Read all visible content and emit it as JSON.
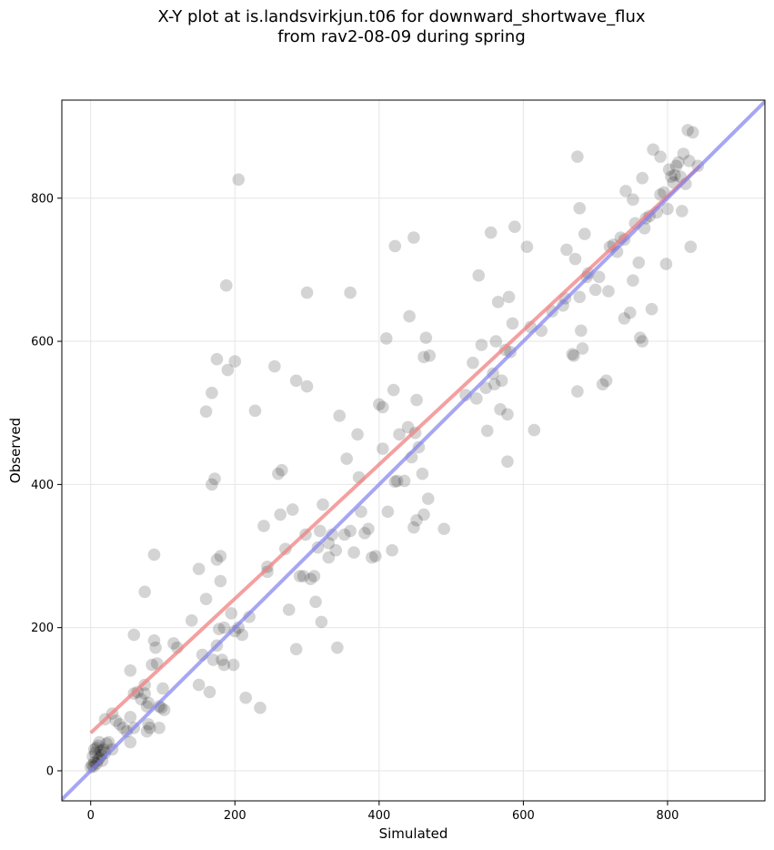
{
  "chart_data": {
    "type": "scatter",
    "title_line1": "X-Y plot at is.landsvirkjun.t06 for downward_shortwave_flux",
    "title_line2": "from rav2-08-09 during spring",
    "xlabel": "Simulated",
    "ylabel": "Observed",
    "xlim": [
      -40,
      935
    ],
    "ylim": [
      -42,
      937
    ],
    "xticks": [
      0,
      200,
      400,
      600,
      800
    ],
    "yticks": [
      0,
      200,
      400,
      600,
      800
    ],
    "grid": true,
    "colors": {
      "points": "#000000",
      "fit_line": "#f08080",
      "one_to_one": "#8080f0"
    },
    "fit_line": {
      "x": [
        0,
        845
      ],
      "y": [
        53,
        845
      ]
    },
    "one_to_one": {
      "x": [
        -40,
        935
      ],
      "y": [
        -40,
        935
      ]
    },
    "points": [
      [
        0,
        5
      ],
      [
        2,
        8
      ],
      [
        4,
        6
      ],
      [
        5,
        12
      ],
      [
        8,
        10
      ],
      [
        10,
        15
      ],
      [
        3,
        20
      ],
      [
        6,
        25
      ],
      [
        12,
        18
      ],
      [
        15,
        22
      ],
      [
        18,
        30
      ],
      [
        8,
        32
      ],
      [
        10,
        35
      ],
      [
        14,
        28
      ],
      [
        20,
        25
      ],
      [
        22,
        38
      ],
      [
        25,
        40
      ],
      [
        5,
        30
      ],
      [
        12,
        40
      ],
      [
        16,
        14
      ],
      [
        30,
        30
      ],
      [
        30,
        80
      ],
      [
        35,
        70
      ],
      [
        40,
        65
      ],
      [
        45,
        60
      ],
      [
        50,
        55
      ],
      [
        55,
        40
      ],
      [
        55,
        75
      ],
      [
        60,
        60
      ],
      [
        65,
        110
      ],
      [
        70,
        100
      ],
      [
        75,
        120
      ],
      [
        75,
        108
      ],
      [
        78,
        90
      ],
      [
        80,
        95
      ],
      [
        80,
        65
      ],
      [
        78,
        55
      ],
      [
        82,
        60
      ],
      [
        85,
        148
      ],
      [
        88,
        182
      ],
      [
        90,
        172
      ],
      [
        92,
        150
      ],
      [
        95,
        90
      ],
      [
        95,
        60
      ],
      [
        98,
        88
      ],
      [
        100,
        115
      ],
      [
        102,
        85
      ],
      [
        20,
        72
      ],
      [
        55,
        140
      ],
      [
        60,
        190
      ],
      [
        75,
        250
      ],
      [
        88,
        302
      ],
      [
        60,
        108
      ],
      [
        115,
        178
      ],
      [
        120,
        172
      ],
      [
        140,
        210
      ],
      [
        150,
        120
      ],
      [
        155,
        162
      ],
      [
        160,
        240
      ],
      [
        150,
        282
      ],
      [
        165,
        110
      ],
      [
        170,
        155
      ],
      [
        175,
        175
      ],
      [
        175,
        295
      ],
      [
        180,
        300
      ],
      [
        180,
        265
      ],
      [
        178,
        198
      ],
      [
        182,
        155
      ],
      [
        185,
        148
      ],
      [
        185,
        200
      ],
      [
        195,
        220
      ],
      [
        198,
        148
      ],
      [
        200,
        195
      ],
      [
        205,
        200
      ],
      [
        210,
        190
      ],
      [
        215,
        102
      ],
      [
        220,
        215
      ],
      [
        235,
        88
      ],
      [
        160,
        502
      ],
      [
        168,
        528
      ],
      [
        172,
        408
      ],
      [
        168,
        400
      ],
      [
        175,
        575
      ],
      [
        190,
        560
      ],
      [
        188,
        678
      ],
      [
        200,
        572
      ],
      [
        205,
        826
      ],
      [
        228,
        503
      ],
      [
        240,
        342
      ],
      [
        245,
        285
      ],
      [
        245,
        278
      ],
      [
        255,
        565
      ],
      [
        260,
        415
      ],
      [
        263,
        358
      ],
      [
        265,
        420
      ],
      [
        270,
        310
      ],
      [
        275,
        225
      ],
      [
        280,
        365
      ],
      [
        285,
        545
      ],
      [
        285,
        170
      ],
      [
        290,
        272
      ],
      [
        295,
        272
      ],
      [
        298,
        330
      ],
      [
        300,
        668
      ],
      [
        300,
        537
      ],
      [
        305,
        268
      ],
      [
        310,
        272
      ],
      [
        312,
        236
      ],
      [
        315,
        312
      ],
      [
        318,
        335
      ],
      [
        320,
        208
      ],
      [
        322,
        372
      ],
      [
        330,
        318
      ],
      [
        330,
        298
      ],
      [
        335,
        330
      ],
      [
        340,
        308
      ],
      [
        342,
        172
      ],
      [
        345,
        496
      ],
      [
        352,
        330
      ],
      [
        355,
        436
      ],
      [
        360,
        668
      ],
      [
        360,
        335
      ],
      [
        365,
        305
      ],
      [
        370,
        470
      ],
      [
        372,
        410
      ],
      [
        375,
        362
      ],
      [
        380,
        332
      ],
      [
        385,
        338
      ],
      [
        390,
        298
      ],
      [
        395,
        300
      ],
      [
        400,
        512
      ],
      [
        405,
        508
      ],
      [
        405,
        450
      ],
      [
        410,
        604
      ],
      [
        412,
        362
      ],
      [
        418,
        308
      ],
      [
        420,
        532
      ],
      [
        422,
        733
      ],
      [
        422,
        404
      ],
      [
        425,
        405
      ],
      [
        428,
        470
      ],
      [
        435,
        405
      ],
      [
        440,
        480
      ],
      [
        442,
        635
      ],
      [
        445,
        438
      ],
      [
        448,
        745
      ],
      [
        448,
        340
      ],
      [
        450,
        472
      ],
      [
        452,
        518
      ],
      [
        452,
        350
      ],
      [
        455,
        452
      ],
      [
        460,
        415
      ],
      [
        462,
        578
      ],
      [
        462,
        358
      ],
      [
        465,
        605
      ],
      [
        468,
        380
      ],
      [
        470,
        580
      ],
      [
        490,
        338
      ],
      [
        520,
        525
      ],
      [
        530,
        570
      ],
      [
        535,
        520
      ],
      [
        538,
        692
      ],
      [
        542,
        595
      ],
      [
        548,
        535
      ],
      [
        550,
        475
      ],
      [
        555,
        752
      ],
      [
        558,
        555
      ],
      [
        560,
        540
      ],
      [
        562,
        600
      ],
      [
        565,
        655
      ],
      [
        568,
        505
      ],
      [
        570,
        545
      ],
      [
        575,
        588
      ],
      [
        578,
        498
      ],
      [
        578,
        432
      ],
      [
        580,
        662
      ],
      [
        582,
        585
      ],
      [
        585,
        625
      ],
      [
        588,
        760
      ],
      [
        605,
        732
      ],
      [
        610,
        620
      ],
      [
        615,
        476
      ],
      [
        625,
        615
      ],
      [
        640,
        642
      ],
      [
        655,
        650
      ],
      [
        658,
        660
      ],
      [
        660,
        728
      ],
      [
        668,
        582
      ],
      [
        670,
        580
      ],
      [
        672,
        715
      ],
      [
        675,
        530
      ],
      [
        675,
        858
      ],
      [
        678,
        662
      ],
      [
        678,
        786
      ],
      [
        680,
        615
      ],
      [
        682,
        590
      ],
      [
        685,
        750
      ],
      [
        688,
        690
      ],
      [
        690,
        695
      ],
      [
        700,
        672
      ],
      [
        705,
        690
      ],
      [
        710,
        540
      ],
      [
        715,
        545
      ],
      [
        718,
        670
      ],
      [
        720,
        732
      ],
      [
        725,
        735
      ],
      [
        730,
        725
      ],
      [
        735,
        745
      ],
      [
        740,
        742
      ],
      [
        740,
        632
      ],
      [
        742,
        810
      ],
      [
        748,
        640
      ],
      [
        752,
        685
      ],
      [
        752,
        798
      ],
      [
        755,
        765
      ],
      [
        760,
        710
      ],
      [
        762,
        605
      ],
      [
        765,
        828
      ],
      [
        768,
        758
      ],
      [
        770,
        772
      ],
      [
        775,
        775
      ],
      [
        778,
        645
      ],
      [
        780,
        868
      ],
      [
        785,
        780
      ],
      [
        790,
        805
      ],
      [
        790,
        858
      ],
      [
        795,
        808
      ],
      [
        800,
        785
      ],
      [
        802,
        840
      ],
      [
        805,
        830
      ],
      [
        808,
        822
      ],
      [
        810,
        832
      ],
      [
        812,
        845
      ],
      [
        815,
        850
      ],
      [
        818,
        830
      ],
      [
        820,
        782
      ],
      [
        822,
        862
      ],
      [
        825,
        820
      ],
      [
        828,
        895
      ],
      [
        830,
        852
      ],
      [
        832,
        732
      ],
      [
        835,
        892
      ],
      [
        842,
        845
      ],
      [
        798,
        708
      ],
      [
        765,
        600
      ]
    ]
  }
}
